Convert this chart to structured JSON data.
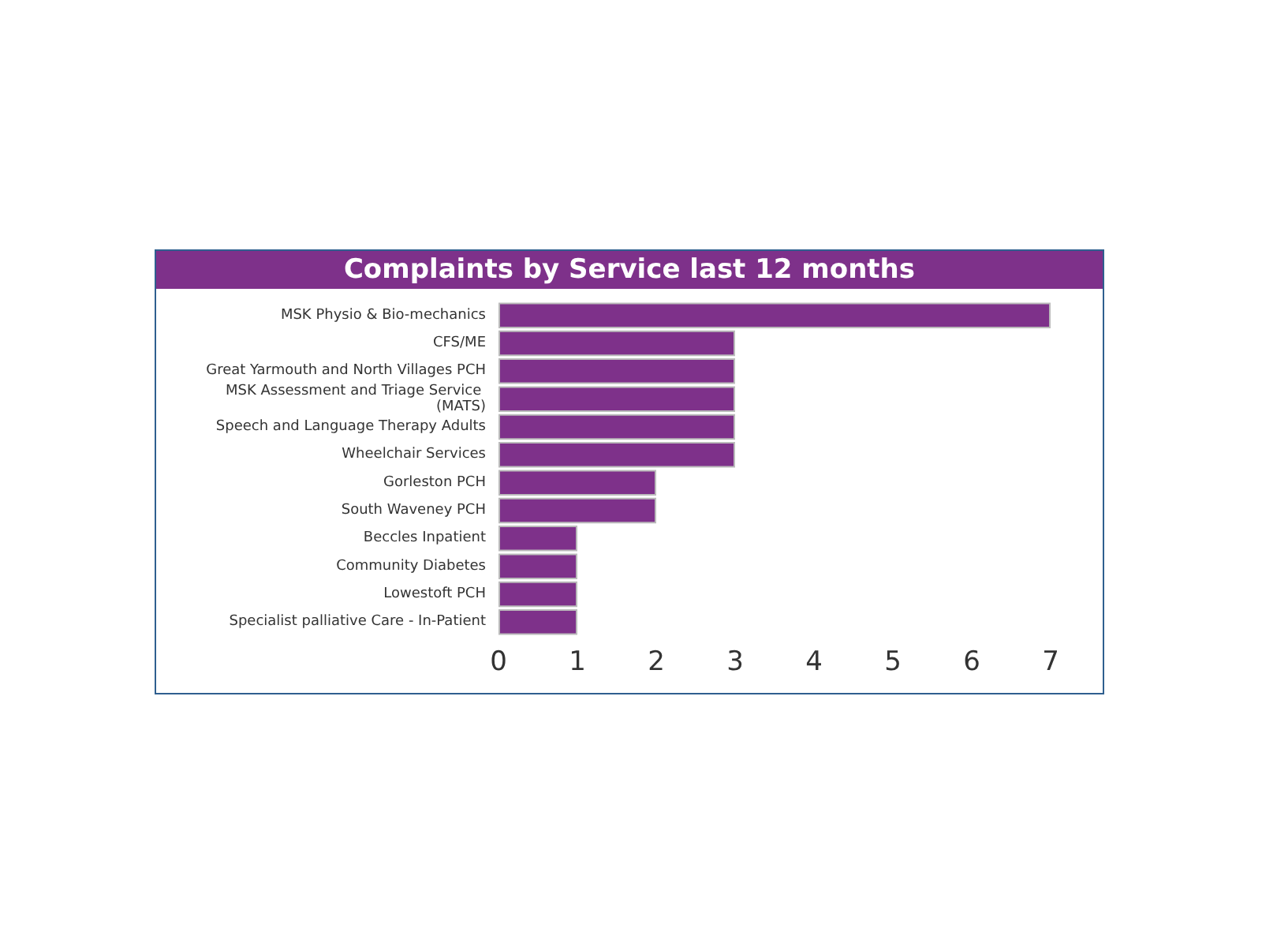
{
  "chart_data": {
    "type": "bar",
    "orientation": "horizontal",
    "title": "Complaints by Service last 12 months",
    "categories": [
      "MSK Physio & Bio-mechanics",
      "CFS/ME",
      "Great Yarmouth and North Villages PCH",
      "MSK Assessment and Triage Service (MATS)",
      "Speech and Language Therapy Adults",
      "Wheelchair Services",
      "Gorleston PCH",
      "South Waveney PCH",
      "Beccles Inpatient",
      "Community Diabetes",
      "Lowestoft PCH",
      "Specialist palliative Care - In-Patient"
    ],
    "values": [
      7,
      3,
      3,
      3,
      3,
      3,
      2,
      2,
      1,
      1,
      1,
      1
    ],
    "color": "#7e318a",
    "xlim": [
      0,
      7
    ],
    "xticks": [
      0,
      1,
      2,
      3,
      4,
      5,
      6,
      7
    ]
  }
}
